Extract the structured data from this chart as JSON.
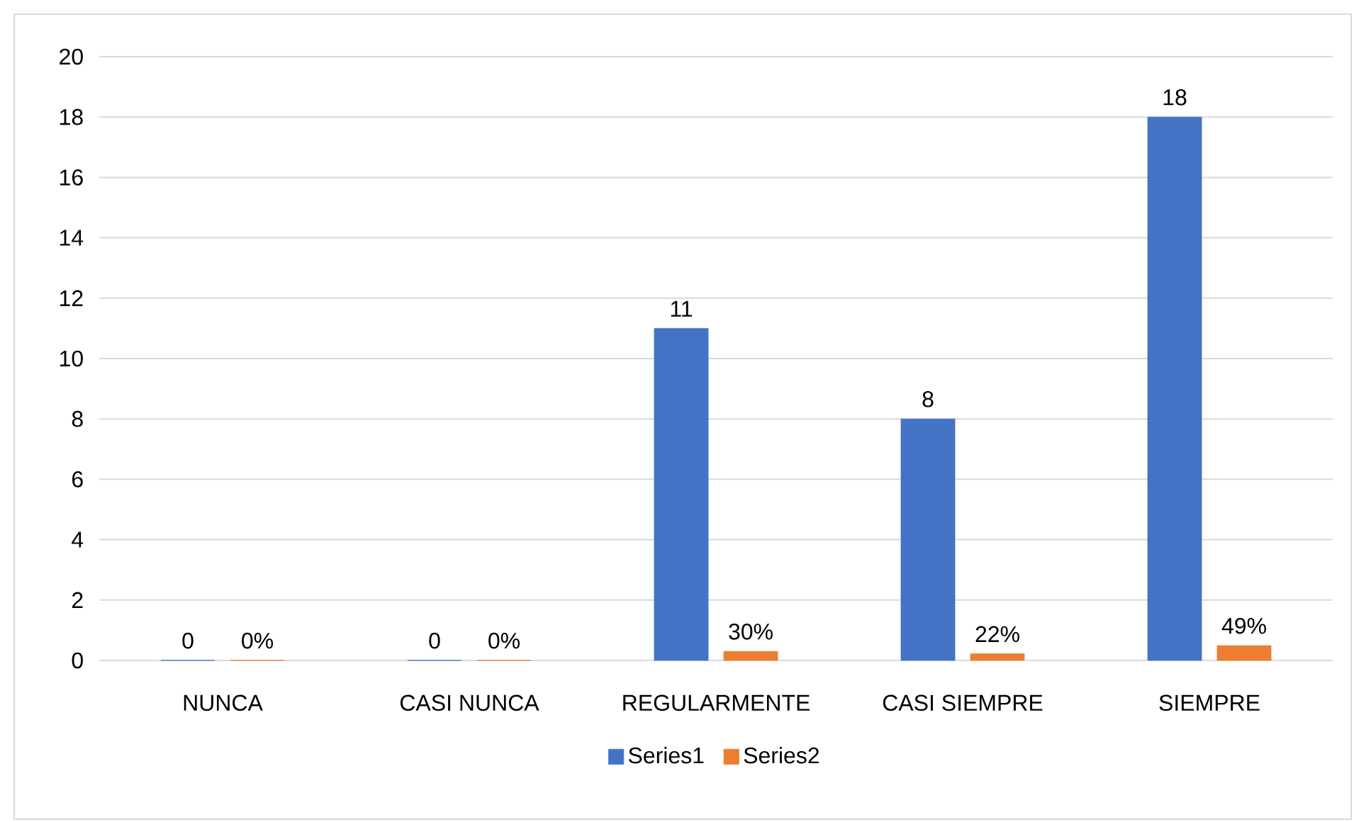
{
  "chart_data": {
    "type": "bar",
    "categories": [
      "NUNCA",
      "CASI NUNCA",
      "REGULARMENTE",
      "CASI SIEMPRE",
      "SIEMPRE"
    ],
    "series": [
      {
        "name": "Series1",
        "color": "#4472c4",
        "values": [
          0,
          0,
          11,
          8,
          18
        ],
        "value_labels": [
          "0",
          "0",
          "11",
          "8",
          "18"
        ]
      },
      {
        "name": "Series2",
        "color": "#ed7d31",
        "values": [
          0,
          0,
          0.3,
          0.22,
          0.49
        ],
        "value_labels": [
          "0%",
          "0%",
          "30%",
          "22%",
          "49%"
        ]
      }
    ],
    "ylim": [
      0,
      20
    ],
    "yticks": [
      0,
      2,
      4,
      6,
      8,
      10,
      12,
      14,
      16,
      18,
      20
    ],
    "grid": "y",
    "legend": "bottom"
  }
}
